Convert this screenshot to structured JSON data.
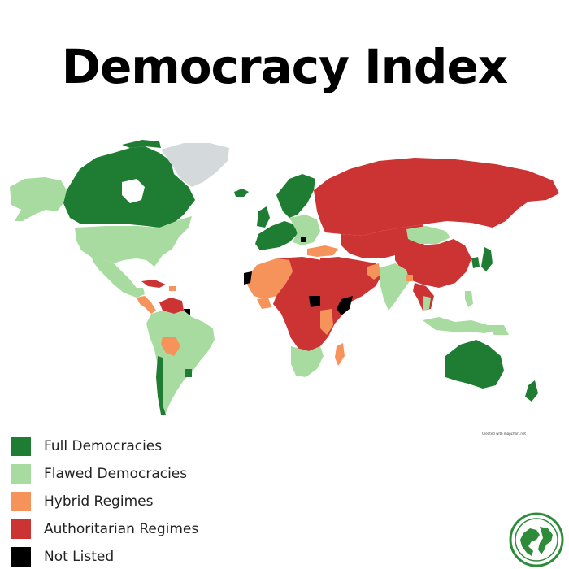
{
  "title": "Democracy Index",
  "credit": "Created with mapchart.net",
  "colors": {
    "full": "#1e7d32",
    "flawed": "#a8dba0",
    "hybrid": "#f6935a",
    "authoritarian": "#cc3333",
    "not_listed": "#000000",
    "greenland": "#d4dadb"
  },
  "legend": [
    {
      "label": "Full Democracies",
      "color": "#1e7d32"
    },
    {
      "label": "Flawed Democracies",
      "color": "#a8dba0"
    },
    {
      "label": "Hybrid Regimes",
      "color": "#f6935a"
    },
    {
      "label": "Authoritarian Regimes",
      "color": "#cc3333"
    },
    {
      "label": "Not Listed",
      "color": "#000000"
    }
  ],
  "logo": {
    "icon": "globe-icon"
  }
}
